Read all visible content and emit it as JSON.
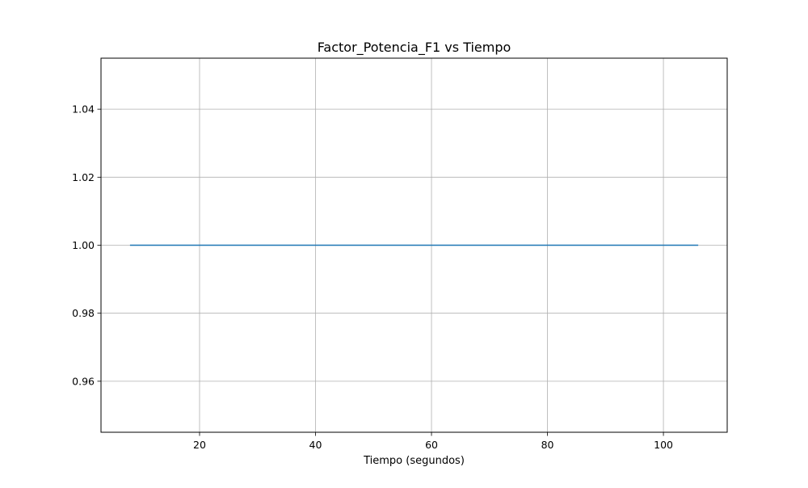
{
  "chart_data": {
    "type": "line",
    "title": "Factor_Potencia_F1 vs Tiempo",
    "xlabel": "Tiempo (segundos)",
    "ylabel": "",
    "xlim": [
      3,
      111
    ],
    "ylim": [
      0.945,
      1.055
    ],
    "xticks": [
      20,
      40,
      60,
      80,
      100
    ],
    "xtick_labels": [
      "20",
      "40",
      "60",
      "80",
      "100"
    ],
    "yticks": [
      0.96,
      0.98,
      1.0,
      1.02,
      1.04
    ],
    "ytick_labels": [
      "0.96",
      "0.98",
      "1.00",
      "1.02",
      "1.04"
    ],
    "grid": true,
    "legend": "none",
    "series": [
      {
        "color": "#1f77b4",
        "x": [
          8,
          106
        ],
        "y": [
          1.0,
          1.0
        ]
      }
    ]
  }
}
